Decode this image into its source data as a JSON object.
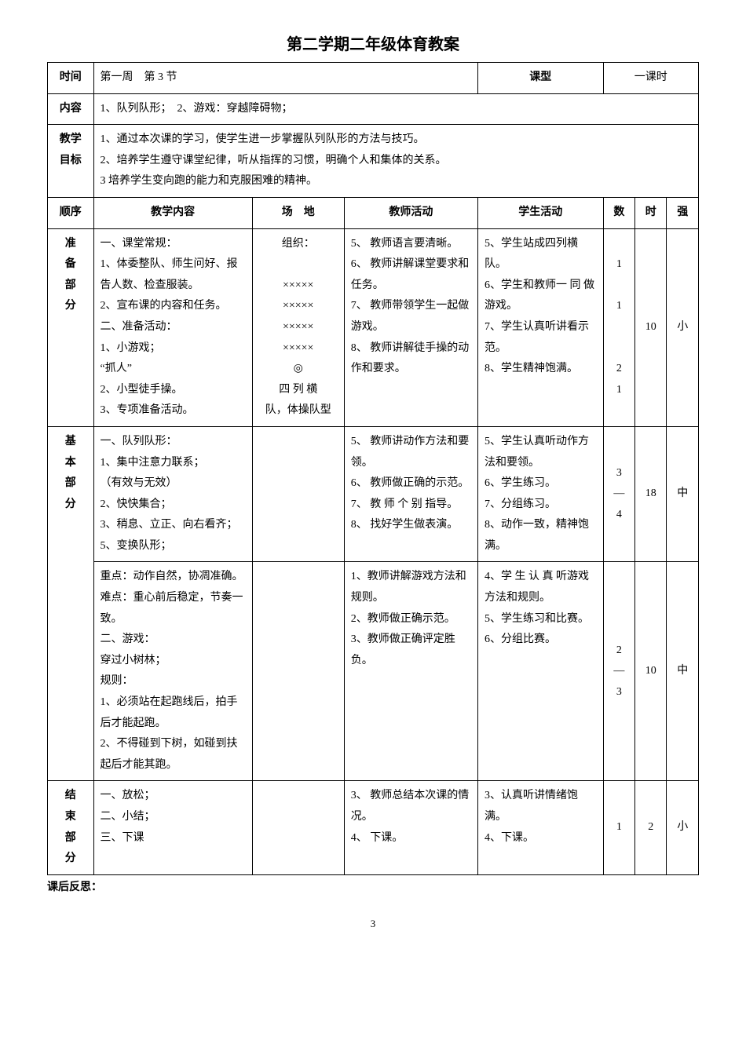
{
  "title": "第二学期二年级体育教案",
  "header": {
    "time_label": "时间",
    "time_value": "第一周　第 3 节",
    "type_label": "课型",
    "type_value": "一课时",
    "content_label": "内容",
    "content_value": "1、队列队形；　2、游戏：穿越障碍物；",
    "goal_label": "教学\n目标",
    "goal_value": "1、通过本次课的学习，使学生进一步掌握队列队形的方法与技巧。\n2、培养学生遵守课堂纪律，听从指挥的习惯，明确个人和集体的关系。\n3 培养学生变向跑的能力和克服困难的精神。"
  },
  "columns": {
    "seq": "顺序",
    "content": "教学内容",
    "field": "场　地",
    "teacher": "教师活动",
    "student": "学生活动",
    "num": "数",
    "time": "时",
    "intensity": "强"
  },
  "sections": {
    "prep": {
      "label": "准\n备\n部\n分",
      "content": "一、课堂常规：\n1、体委整队、师生问好、报告人数、检查服装。\n2、宣布课的内容和任务。\n二、准备活动：\n1、小游戏；\n“抓人”\n2、小型徒手操。\n3、专项准备活动。",
      "field": "组织：\n\n×××××\n×××××\n×××××\n×××××\n◎\n四 列 横\n队，体操队型",
      "teacher": "5、 教师语言要清晰。\n6、 教师讲解课堂要求和任务。\n7、 教师带领学生一起做游戏。\n8、 教师讲解徒手操的动作和要求。",
      "student": "5、学生站成四列横队。\n6、学生和教师一 同 做 游戏。\n7、学生认真听讲看示范。\n8、学生精神饱满。",
      "num": "1\n\n1\n\n\n2\n1",
      "time": "10",
      "intensity": "小"
    },
    "main_label": "基\n本\n部\n分",
    "main1": {
      "content": "一、队列队形：\n1、集中注意力联系；\n（有效与无效）\n2、快快集合；\n3、稍息、立正、向右看齐；\n5、变换队形；",
      "field": "",
      "teacher": "5、 教师讲动作方法和要领。\n6、 教师做正确的示范。\n7、 教 师 个 别 指导。\n8、 找好学生做表演。",
      "student": "5、学生认真听动作方法和要领。\n6、学生练习。\n7、分组练习。\n8、动作一致，精神饱满。",
      "num": "3\n—\n4",
      "time": "18",
      "intensity": "中"
    },
    "main2": {
      "content": "重点：动作自然，协凋准确。\n难点：重心前后稳定，节奏一致。\n二、游戏：\n穿过小树林；\n规则：\n1、必须站在起跑线后，拍手后才能起跑。\n2、不得碰到下树，如碰到扶起后才能其跑。",
      "field": "",
      "teacher": "1、教师讲解游戏方法和规则。\n2、教师做正确示范。\n3、教师做正确评定胜负。",
      "student": "4、学 生 认 真 听游戏方法和规则。\n5、学生练习和比赛。\n6、分组比赛。",
      "num": "2\n—\n3",
      "time": "10",
      "intensity": "中"
    },
    "end": {
      "label": "结\n束\n部\n分",
      "content": "一、放松；\n二、小结；\n三、下课",
      "field": "",
      "teacher": "3、 教师总结本次课的情况。\n4、 下课。",
      "student": "3、认真听讲情绪饱满。\n4、下课。",
      "num": "1",
      "time": "2",
      "intensity": "小"
    }
  },
  "footer": "课后反思：",
  "page_number": "3"
}
